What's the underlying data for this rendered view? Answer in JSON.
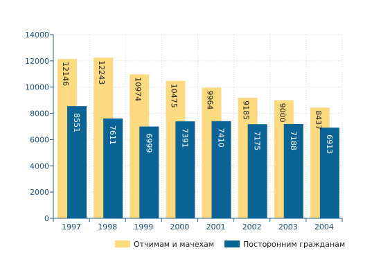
{
  "chart_data": {
    "type": "bar",
    "categories": [
      "1997",
      "1998",
      "1999",
      "2000",
      "2001",
      "2002",
      "2003",
      "2004"
    ],
    "series": [
      {
        "name": "Отчимам и мачехам",
        "values": [
          12146,
          12243,
          10974,
          10475,
          9964,
          9185,
          9000,
          8437
        ],
        "color": "#fdd97f"
      },
      {
        "name": "Посторонним гражданам",
        "values": [
          8551,
          7611,
          6999,
          7391,
          7410,
          7175,
          7188,
          6913
        ],
        "color": "#0a6596"
      }
    ],
    "ylim": [
      0,
      14000
    ],
    "yticks": [
      0,
      2000,
      4000,
      6000,
      8000,
      10000,
      12000,
      14000
    ],
    "grid": true,
    "legend": "bottom",
    "axis_color": "#1a5f8a",
    "grid_color": "#d9d9d9"
  }
}
